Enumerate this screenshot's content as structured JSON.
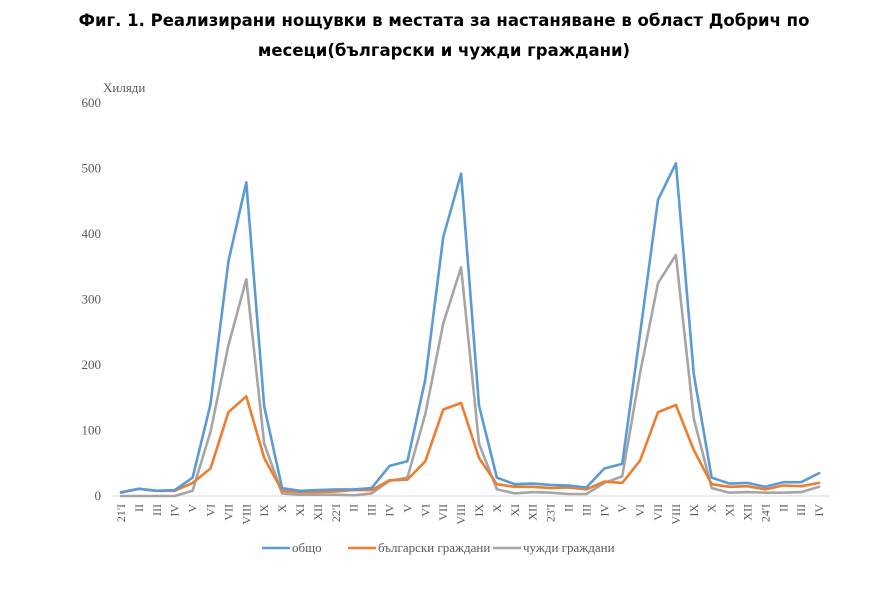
{
  "chart_data": {
    "type": "line",
    "title_line1": "Фиг. 1. Реализирани нощувки в местата за настаняване в област Добрич по",
    "title_line2": "месеци(български и чужди граждани)",
    "ylabel": "Хиляди",
    "xlabel": "",
    "ylim": [
      0,
      600
    ],
    "yticks": [
      "0",
      "100",
      "200",
      "300",
      "400",
      "500",
      "600"
    ],
    "grid": false,
    "legend_position": "bottom",
    "categories": [
      "21'I",
      "II",
      "III",
      "IV",
      "V",
      "VI",
      "VII",
      "VIII",
      "IX",
      "X",
      "XI",
      "XII",
      "22'I",
      "II",
      "III",
      "IV",
      "V",
      "VI",
      "VII",
      "VIII",
      "IX",
      "X",
      "XI",
      "XII",
      "23'I",
      "II",
      "III",
      "IV",
      "V",
      "VI",
      "VII",
      "VIII",
      "IX",
      "X",
      "XI",
      "XII",
      "24'I",
      "II",
      "III",
      "IV"
    ],
    "series": [
      {
        "name": "общо",
        "color": "#5b9bd5",
        "values": [
          5,
          11,
          8,
          9,
          28,
          140,
          358,
          479,
          137,
          12,
          8,
          9,
          10,
          10,
          12,
          46,
          53,
          178,
          395,
          492,
          138,
          28,
          18,
          19,
          17,
          16,
          13,
          42,
          49,
          248,
          452,
          508,
          186,
          28,
          19,
          20,
          14,
          21,
          21,
          35
        ]
      },
      {
        "name": "български граждани",
        "color": "#ed7d31",
        "values": [
          6,
          11,
          8,
          8,
          20,
          42,
          128,
          152,
          58,
          8,
          6,
          6,
          7,
          9,
          9,
          24,
          25,
          53,
          132,
          142,
          58,
          18,
          14,
          14,
          12,
          13,
          10,
          22,
          20,
          54,
          128,
          139,
          70,
          18,
          14,
          15,
          10,
          16,
          15,
          20
        ]
      },
      {
        "name": "чужди граждани",
        "color": "#a5a5a5",
        "values": [
          0,
          0,
          0,
          0,
          8,
          98,
          230,
          331,
          80,
          4,
          2,
          2,
          2,
          1,
          4,
          23,
          28,
          125,
          263,
          349,
          80,
          10,
          4,
          6,
          5,
          3,
          3,
          20,
          30,
          188,
          325,
          368,
          118,
          12,
          5,
          6,
          5,
          5,
          6,
          14
        ]
      }
    ]
  }
}
